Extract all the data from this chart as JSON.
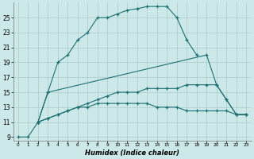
{
  "xlabel": "Humidex (Indice chaleur)",
  "bg_color": "#cce8e8",
  "grid_color": "#aacccc",
  "line_color": "#1e7070",
  "xlim": [
    -0.5,
    23.5
  ],
  "ylim": [
    8.5,
    27
  ],
  "xticks": [
    0,
    1,
    2,
    3,
    4,
    5,
    6,
    7,
    8,
    9,
    10,
    11,
    12,
    13,
    14,
    15,
    16,
    17,
    18,
    19,
    20,
    21,
    22,
    23
  ],
  "yticks": [
    9,
    11,
    13,
    15,
    17,
    19,
    21,
    23,
    25
  ],
  "series1_x": [
    0,
    1,
    2,
    3,
    4,
    5,
    6,
    7,
    8,
    9,
    10,
    11,
    12,
    13,
    14,
    15,
    16,
    17,
    18
  ],
  "series1_y": [
    9,
    9,
    11,
    15,
    19,
    20,
    22,
    23,
    25,
    25,
    25.5,
    26,
    26.2,
    26.5,
    26.5,
    26.5,
    25,
    22,
    20
  ],
  "series2_x": [
    2,
    3,
    19,
    20,
    21,
    22,
    23
  ],
  "series2_y": [
    11,
    15,
    20,
    16,
    14,
    12,
    12
  ],
  "series3_x": [
    2,
    3,
    4,
    5,
    6,
    7,
    8,
    9,
    10,
    11,
    12,
    13,
    14,
    15,
    16,
    17,
    18,
    19,
    20,
    21,
    22,
    23
  ],
  "series3_y": [
    11,
    11.5,
    12,
    12.5,
    13,
    13,
    13.5,
    13.5,
    13.5,
    13.5,
    13.5,
    13.5,
    13,
    13,
    13,
    12.5,
    12.5,
    12.5,
    12.5,
    12.5,
    12,
    12
  ],
  "series4_x": [
    2,
    3,
    4,
    5,
    6,
    7,
    8,
    9,
    10,
    11,
    12,
    13,
    14,
    15,
    16,
    17,
    18,
    19,
    20,
    21,
    22,
    23
  ],
  "series4_y": [
    11,
    11.5,
    12,
    12.5,
    13,
    13.5,
    14,
    14.5,
    15,
    15,
    15,
    15.5,
    15.5,
    15.5,
    15.5,
    16,
    16,
    16,
    16,
    14,
    12,
    12
  ]
}
